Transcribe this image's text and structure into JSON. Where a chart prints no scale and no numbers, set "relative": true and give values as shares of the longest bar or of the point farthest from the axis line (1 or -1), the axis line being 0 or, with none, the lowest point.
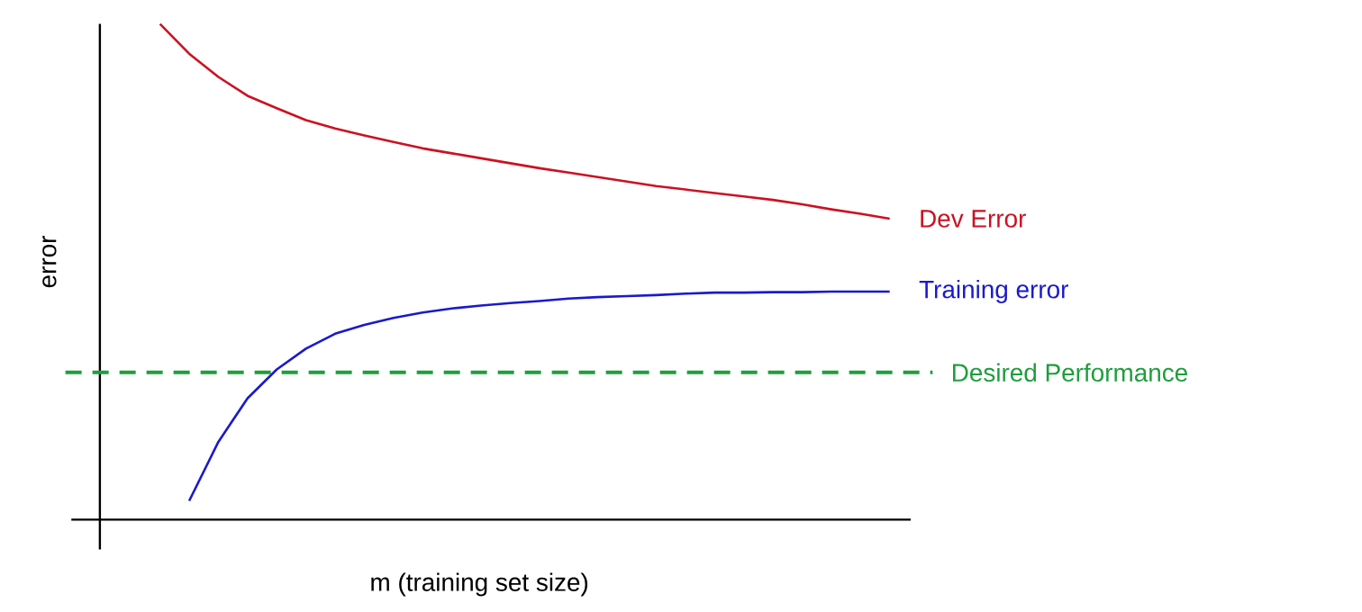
{
  "chart_data": {
    "type": "line",
    "relative": true,
    "xlabel": "m (training set size)",
    "ylabel": "error",
    "legend": false,
    "marker": "none",
    "line_style": "solid",
    "categories": [
      null,
      null,
      null,
      null,
      null,
      null,
      null,
      null,
      null,
      null,
      null,
      null,
      null,
      null,
      null,
      null,
      null,
      null,
      null,
      null,
      null,
      null,
      null,
      null,
      null,
      null
    ],
    "series": [
      {
        "name": "Dev Error",
        "color": "#cc1122",
        "values": [
          1.0,
          0.94,
          0.893,
          0.855,
          0.83,
          0.806,
          0.789,
          0.775,
          0.762,
          0.749,
          0.739,
          0.729,
          0.719,
          0.709,
          0.7,
          0.691,
          0.682,
          0.673,
          0.666,
          0.659,
          0.652,
          0.645,
          0.636,
          0.626,
          0.617,
          0.607
        ]
      },
      {
        "name": "Training error",
        "color": "#1a1acc",
        "values": [
          null,
          0.038,
          0.157,
          0.245,
          0.303,
          0.345,
          0.375,
          0.393,
          0.407,
          0.418,
          0.426,
          0.432,
          0.437,
          0.441,
          0.446,
          0.449,
          0.451,
          0.453,
          0.456,
          0.458,
          0.458,
          0.459,
          0.459,
          0.46,
          0.46,
          0.46
        ]
      }
    ],
    "ref_lines": [
      {
        "axis": "y",
        "value": 0.297,
        "label": "Desired Performance",
        "color": "#1e9e3c",
        "line_style": "dashed"
      }
    ]
  }
}
